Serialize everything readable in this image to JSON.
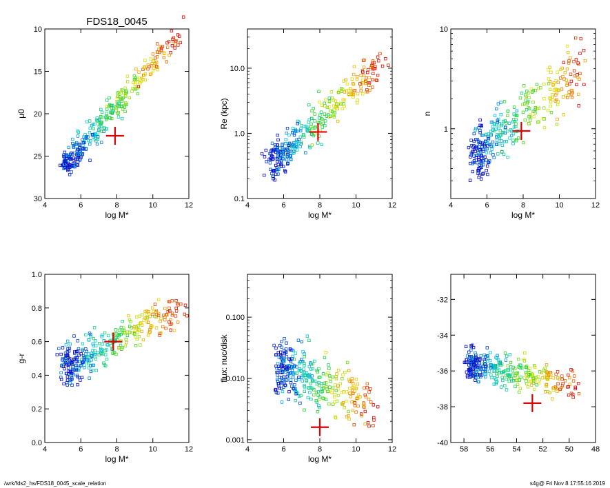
{
  "title": "FDS18_0045",
  "footer": {
    "path": "/wrk/fds2_hs/FDS18_0045_scale_relation",
    "stamp": "s4g@  Fri Nov  8 17:55:16 2019"
  },
  "chart_data": [
    {
      "id": "mu0",
      "type": "scatter",
      "title": "FDS18_0045",
      "xlabel": "log M*",
      "ylabel": "μ0",
      "xlim": [
        4,
        12
      ],
      "ylim": [
        30,
        10
      ],
      "xticks": [
        "4",
        "6",
        "8",
        "10",
        "12"
      ],
      "yticks": [
        "10",
        "15",
        "20",
        "25",
        "30"
      ],
      "trend": {
        "x0": 5.2,
        "y0": 26.0,
        "x1": 11.4,
        "y1": 10.5,
        "spread": 1.6
      },
      "highlight": {
        "x": 7.9,
        "y": 22.6
      },
      "extra": [
        {
          "x": 9.2,
          "y": 16.8
        },
        {
          "x": 11.7,
          "y": 8.6
        }
      ]
    },
    {
      "id": "re",
      "type": "scatter",
      "xlabel": "log M*",
      "ylabel": "Re (kpc)",
      "yscale": "log",
      "xlim": [
        4,
        12
      ],
      "ylim": [
        0.1,
        40
      ],
      "xticks": [
        "4",
        "6",
        "8",
        "10",
        "12"
      ],
      "yticks": [
        "0.1",
        "1.0",
        "10.0"
      ],
      "trend": {
        "x0": 5.4,
        "y0": 0.35,
        "x1": 11.3,
        "y1": 12.0,
        "spread": 0.55
      },
      "highlight": {
        "x": 7.9,
        "y": 1.05
      }
    },
    {
      "id": "sersic",
      "type": "scatter",
      "xlabel": "log M*",
      "ylabel": "n",
      "yscale": "log",
      "xlim": [
        4,
        12
      ],
      "ylim": [
        0.2,
        10
      ],
      "xticks": [
        "4",
        "6",
        "8",
        "10",
        "12"
      ],
      "yticks": [
        "1",
        "10"
      ],
      "trend": {
        "x0": 5.3,
        "y0": 0.55,
        "x1": 11.5,
        "y1": 4.5,
        "spread": 0.55
      },
      "highlight": {
        "x": 7.9,
        "y": 0.95
      }
    },
    {
      "id": "color",
      "type": "scatter",
      "xlabel": "log M*",
      "ylabel": "g-r",
      "xlim": [
        4,
        12
      ],
      "ylim": [
        0.0,
        1.0
      ],
      "xticks": [
        "4",
        "6",
        "8",
        "10",
        "12"
      ],
      "yticks": [
        "0.0",
        "0.2",
        "0.4",
        "0.6",
        "0.8",
        "1.0"
      ],
      "trend": {
        "x0": 5.2,
        "y0": 0.45,
        "x1": 11.6,
        "y1": 0.82,
        "spread": 0.16
      },
      "highlight": {
        "x": 7.8,
        "y": 0.6
      }
    },
    {
      "id": "flux",
      "type": "scatter",
      "xlabel": "log M*",
      "ylabel": "flux: nuc/disk",
      "yscale": "log",
      "xlim": [
        4,
        12
      ],
      "ylim": [
        0.0009,
        0.5
      ],
      "xticks": [
        "4",
        "6",
        "8",
        "10",
        "12"
      ],
      "yticks": [
        "0.001",
        "0.010",
        "0.100"
      ],
      "trend": {
        "x0": 5.8,
        "y0": 0.015,
        "x1": 11.0,
        "y1": 0.004,
        "spread": 1.0
      },
      "highlight": {
        "x": 8.0,
        "y": 0.0016
      }
    },
    {
      "id": "absmag",
      "type": "scatter",
      "xlabel": "",
      "ylabel": "",
      "xlim": [
        59,
        48
      ],
      "ylim": [
        -40,
        -30.6
      ],
      "xticks": [
        "58",
        "56",
        "54",
        "52",
        "50",
        "48"
      ],
      "yticks": [
        "-32",
        "-34",
        "-36",
        "-38",
        "-40"
      ],
      "trend": {
        "x0": 57.6,
        "y0": -35.6,
        "x1": 49.5,
        "y1": -36.8,
        "spread": 1.3
      },
      "highlight": {
        "x": 52.8,
        "y": -37.8
      }
    }
  ]
}
